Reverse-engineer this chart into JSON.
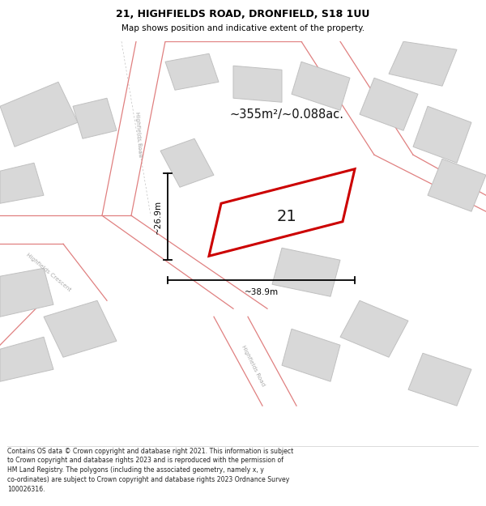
{
  "title": "21, HIGHFIELDS ROAD, DRONFIELD, S18 1UU",
  "subtitle": "Map shows position and indicative extent of the property.",
  "footer": "Contains OS data © Crown copyright and database right 2021. This information is subject to Crown copyright and database rights 2023 and is reproduced with the permission of HM Land Registry. The polygons (including the associated geometry, namely x, y co-ordinates) are subject to Crown copyright and database rights 2023 Ordnance Survey 100026316.",
  "area_label": "~355m²/~0.088ac.",
  "width_label": "~38.9m",
  "height_label": "~26.9m",
  "property_number": "21",
  "map_bg": "#efefef",
  "road_fill": "#ffffff",
  "building_fill": "#d8d8d8",
  "building_edge": "#c0c0c0",
  "road_line_color": "#e08080",
  "property_fill": "#ffffff",
  "property_stroke": "#cc0000",
  "title_color": "#000000",
  "road_label_color": "#aaaaaa",
  "dim_color": "#000000"
}
